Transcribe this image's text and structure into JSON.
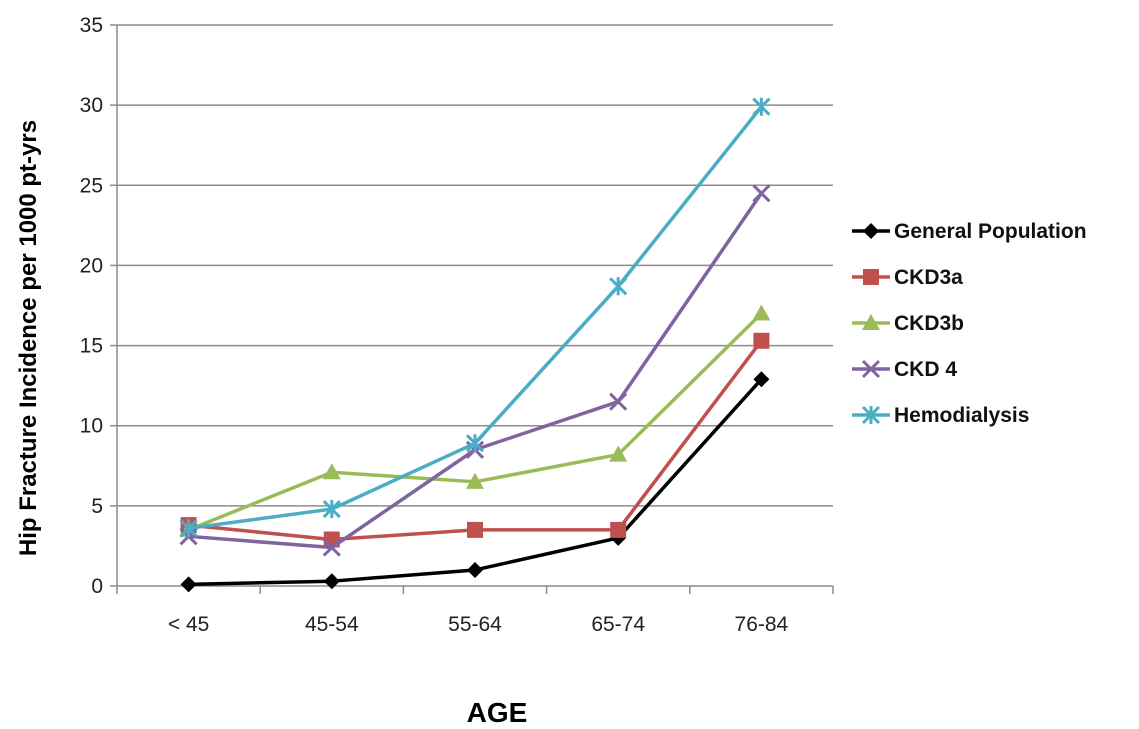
{
  "chart_data": {
    "type": "line",
    "title": "",
    "xlabel": "AGE",
    "ylabel": "Hip Fracture Incidence per 1000 pt-yrs",
    "categories": [
      "< 45",
      "45-54",
      "55-64",
      "65-74",
      "76-84"
    ],
    "ylim": [
      0,
      35
    ],
    "yticks": [
      0,
      5,
      10,
      15,
      20,
      25,
      30,
      35
    ],
    "grid": true,
    "legend_position": "right",
    "series": [
      {
        "name": "General Population",
        "values": [
          0.1,
          0.3,
          1.0,
          3.0,
          12.9
        ],
        "color": "#000000",
        "marker": "diamond"
      },
      {
        "name": "CKD3a",
        "values": [
          3.8,
          2.9,
          3.5,
          3.5,
          15.3
        ],
        "color": "#c0504d",
        "marker": "square"
      },
      {
        "name": "CKD3b",
        "values": [
          3.5,
          7.1,
          6.5,
          8.2,
          17.0
        ],
        "color": "#9bbb59",
        "marker": "triangle"
      },
      {
        "name": "CKD 4",
        "values": [
          3.1,
          2.4,
          8.5,
          11.5,
          24.5
        ],
        "color": "#8064a2",
        "marker": "x"
      },
      {
        "name": "Hemodialysis",
        "values": [
          3.6,
          4.8,
          8.9,
          18.7,
          29.9
        ],
        "color": "#4bacc6",
        "marker": "star"
      }
    ]
  }
}
